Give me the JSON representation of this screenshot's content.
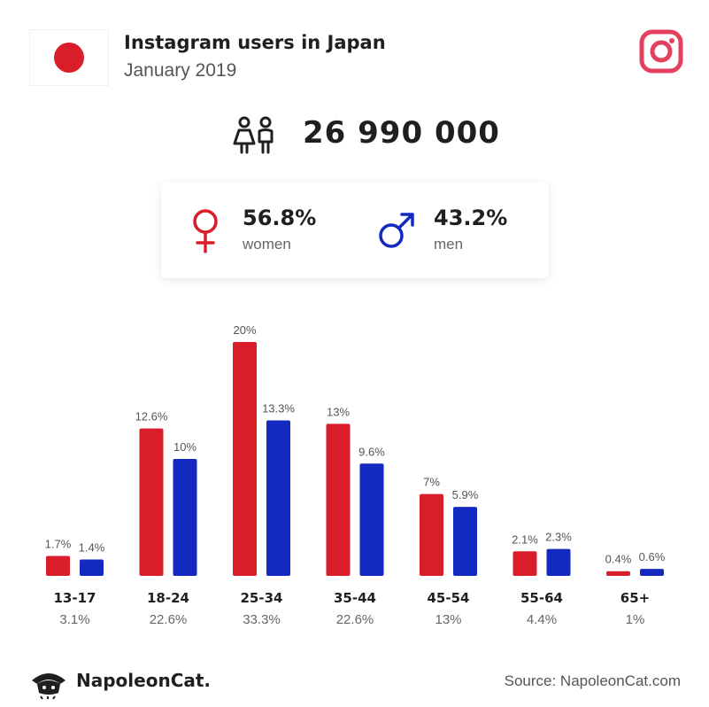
{
  "header": {
    "title": "Instagram users in Japan",
    "subtitle": "January 2019"
  },
  "total_users": "26 990 000",
  "gender": {
    "women": {
      "value": "56.8%",
      "label": "women"
    },
    "men": {
      "value": "43.2%",
      "label": "men"
    }
  },
  "colors": {
    "women": "#d91e2a",
    "men": "#1329c0",
    "flag_red": "#d91e2a",
    "instagram": "#e4405f"
  },
  "footer": {
    "brand": "NapoleonCat.",
    "source": "Source: NapoleonCat.com"
  },
  "chart_data": {
    "type": "bar",
    "categories": [
      "13-17",
      "18-24",
      "25-34",
      "35-44",
      "45-54",
      "55-64",
      "65+"
    ],
    "category_totals": [
      "3.1%",
      "22.6%",
      "33.3%",
      "22.6%",
      "13%",
      "4.4%",
      "1%"
    ],
    "series": [
      {
        "values": [
          1.7,
          12.6,
          20,
          13,
          7,
          2.1,
          0.4
        ],
        "labels": [
          "1.7%",
          "12.6%",
          "20%",
          "13%",
          "7%",
          "2.1%",
          "0.4%"
        ],
        "color": "#d91e2a"
      },
      {
        "values": [
          1.4,
          10,
          13.3,
          9.6,
          5.9,
          2.3,
          0.6
        ],
        "labels": [
          "1.4%",
          "10%",
          "13.3%",
          "9.6%",
          "5.9%",
          "2.3%",
          "0.6%"
        ],
        "color": "#1329c0"
      }
    ],
    "grid": false,
    "legend": "none"
  }
}
